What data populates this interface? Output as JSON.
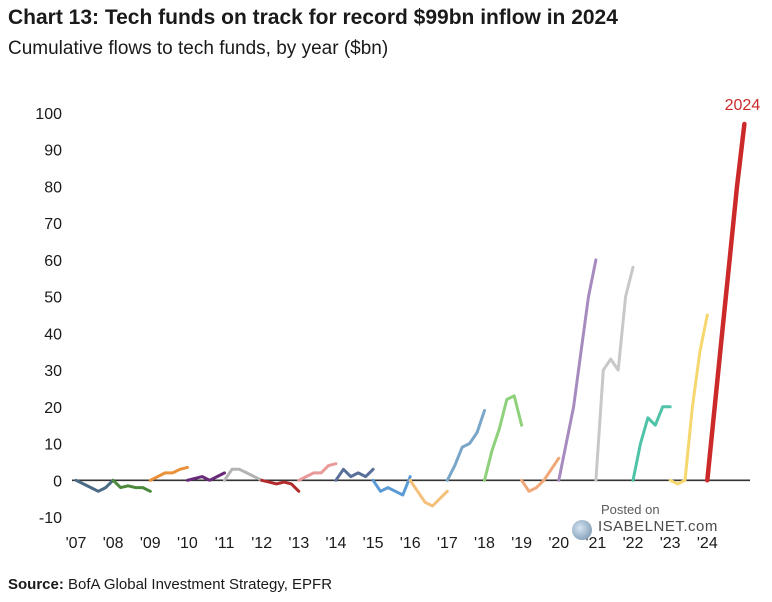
{
  "chart_data": {
    "type": "line",
    "title": "Chart 13: Tech funds on track for record $99bn inflow in 2024",
    "subtitle": "Cumulative flows to tech funds, by year ($bn)",
    "xlabel": "",
    "ylabel": "",
    "ylim": [
      -10,
      100
    ],
    "yticks": [
      "100",
      "90",
      "80",
      "70",
      "60",
      "50",
      "40",
      "30",
      "20",
      "10",
      "0",
      "-10"
    ],
    "xticks": [
      "'07",
      "'08",
      "'09",
      "'10",
      "'11",
      "'12",
      "'13",
      "'14",
      "'15",
      "'16",
      "'17",
      "'18",
      "'19",
      "'20",
      "'21",
      "'22",
      "'23",
      "'24"
    ],
    "annotation": "2024",
    "series": [
      {
        "name": "2007",
        "color": "#4a6a86",
        "x": [
          2007.0,
          2007.2,
          2007.4,
          2007.6,
          2007.8,
          2008.0
        ],
        "y": [
          0,
          -1,
          -2,
          -3,
          -2,
          0
        ]
      },
      {
        "name": "2008",
        "color": "#4a8a3a",
        "x": [
          2008.0,
          2008.2,
          2008.4,
          2008.6,
          2008.8,
          2009.0
        ],
        "y": [
          0,
          -2,
          -1.5,
          -2,
          -2,
          -3
        ]
      },
      {
        "name": "2009",
        "color": "#e8913a",
        "x": [
          2009.0,
          2009.2,
          2009.4,
          2009.6,
          2009.8,
          2010.0
        ],
        "y": [
          0,
          1,
          2,
          2,
          3,
          3.5
        ]
      },
      {
        "name": "2010",
        "color": "#6a2a7a",
        "x": [
          2010.0,
          2010.2,
          2010.4,
          2010.6,
          2010.8,
          2011.0
        ],
        "y": [
          0,
          0.5,
          1,
          0,
          1,
          2
        ]
      },
      {
        "name": "2011",
        "color": "#b4b4b4",
        "x": [
          2011.0,
          2011.2,
          2011.4,
          2011.6,
          2011.8,
          2012.0
        ],
        "y": [
          0,
          3,
          3,
          2,
          1,
          0
        ]
      },
      {
        "name": "2012",
        "color": "#b22b2b",
        "x": [
          2012.0,
          2012.2,
          2012.4,
          2012.6,
          2012.8,
          2013.0
        ],
        "y": [
          0,
          -0.5,
          -1,
          -0.5,
          -1,
          -3
        ]
      },
      {
        "name": "2013",
        "color": "#e89a9a",
        "x": [
          2013.0,
          2013.2,
          2013.4,
          2013.6,
          2013.8,
          2014.0
        ],
        "y": [
          0,
          1,
          2,
          2,
          4,
          4.5
        ]
      },
      {
        "name": "2014",
        "color": "#5a6e9a",
        "x": [
          2014.0,
          2014.2,
          2014.4,
          2014.6,
          2014.8,
          2015.0
        ],
        "y": [
          0,
          3,
          1,
          2,
          1,
          3
        ]
      },
      {
        "name": "2015",
        "color": "#5b9bd5",
        "x": [
          2015.0,
          2015.2,
          2015.4,
          2015.6,
          2015.8,
          2016.0
        ],
        "y": [
          0,
          -3,
          -2,
          -3,
          -4,
          1
        ]
      },
      {
        "name": "2016",
        "color": "#f5c07a",
        "x": [
          2016.0,
          2016.2,
          2016.4,
          2016.6,
          2016.8,
          2017.0
        ],
        "y": [
          0,
          -3,
          -6,
          -7,
          -5,
          -3
        ]
      },
      {
        "name": "2017",
        "color": "#7aa6c8",
        "x": [
          2017.0,
          2017.2,
          2017.4,
          2017.6,
          2017.8,
          2018.0
        ],
        "y": [
          0,
          4,
          9,
          10,
          13,
          19
        ]
      },
      {
        "name": "2018",
        "color": "#8ed17a",
        "x": [
          2018.0,
          2018.2,
          2018.4,
          2018.6,
          2018.8,
          2019.0
        ],
        "y": [
          0,
          8,
          14,
          22,
          23,
          15
        ]
      },
      {
        "name": "2019",
        "color": "#f0a878",
        "x": [
          2019.0,
          2019.2,
          2019.4,
          2019.6,
          2019.8,
          2020.0
        ],
        "y": [
          0,
          -3,
          -2,
          0,
          3,
          6
        ]
      },
      {
        "name": "2020",
        "color": "#a78bbf",
        "x": [
          2020.0,
          2020.2,
          2020.4,
          2020.6,
          2020.8,
          2021.0
        ],
        "y": [
          0,
          10,
          20,
          35,
          50,
          60
        ]
      },
      {
        "name": "2021",
        "color": "#c8c8c8",
        "x": [
          2021.0,
          2021.2,
          2021.4,
          2021.6,
          2021.8,
          2022.0
        ],
        "y": [
          0,
          30,
          33,
          30,
          50,
          58
        ]
      },
      {
        "name": "2022",
        "color": "#4fc3a8",
        "x": [
          2022.0,
          2022.2,
          2022.4,
          2022.6,
          2022.8,
          2023.0
        ],
        "y": [
          0,
          10,
          17,
          15,
          20,
          20
        ]
      },
      {
        "name": "2023",
        "color": "#f5d76e",
        "x": [
          2023.0,
          2023.2,
          2023.4,
          2023.6,
          2023.8,
          2024.0
        ],
        "y": [
          0,
          -1,
          0,
          20,
          35,
          45
        ]
      },
      {
        "name": "2024",
        "color": "#cc2a2a",
        "x": [
          2024.0,
          2024.2,
          2024.4,
          2024.6,
          2024.8,
          2025.0
        ],
        "y": [
          0,
          20,
          40,
          60,
          80,
          97
        ]
      }
    ]
  },
  "watermark": {
    "posted": "Posted on",
    "brand": "ISABELNET.com"
  },
  "source": {
    "label": "Source:",
    "text": "BofA Global Investment Strategy, EPFR"
  }
}
